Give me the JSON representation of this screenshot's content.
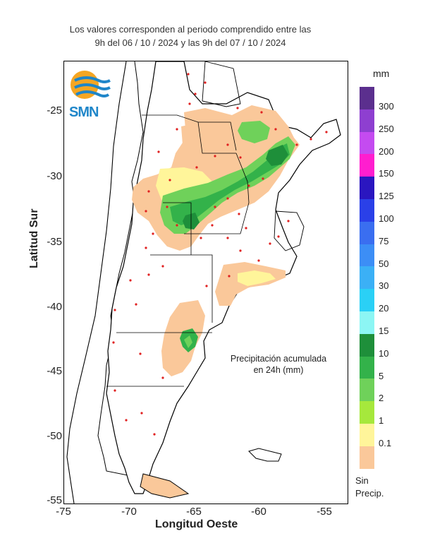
{
  "title": {
    "line1": "Los valores corresponden al periodo comprendido entre las",
    "line2": "9h del 06 / 10 / 2024  y las 9h del 07 / 10 / 2024"
  },
  "logo": {
    "text": "SMN",
    "icon": "smn-sun-waves-logo"
  },
  "axes": {
    "xlabel": "Longitud Oeste",
    "ylabel": "Latitud Sur",
    "xticks": [
      "-75",
      "-70",
      "-65",
      "-60",
      "-55"
    ],
    "yticks": [
      "-25",
      "-30",
      "-35",
      "-40",
      "-45",
      "-50",
      "-55"
    ]
  },
  "colorbar": {
    "unit": "mm",
    "levels": [
      {
        "label": "300",
        "color": "#5b2f8e"
      },
      {
        "label": "250",
        "color": "#8e3fd0"
      },
      {
        "label": "200",
        "color": "#c44bf0"
      },
      {
        "label": "150",
        "color": "#ff1ecf"
      },
      {
        "label": "125",
        "color": "#2a16c0"
      },
      {
        "label": "100",
        "color": "#2a40e8"
      },
      {
        "label": "75",
        "color": "#3a6ef0"
      },
      {
        "label": "50",
        "color": "#3c8ef6"
      },
      {
        "label": "30",
        "color": "#3bb0f6"
      },
      {
        "label": "20",
        "color": "#2ad0f6"
      },
      {
        "label": "15",
        "color": "#8cf6f4"
      },
      {
        "label": "10",
        "color": "#1e8f3a"
      },
      {
        "label": "5",
        "color": "#33b24a"
      },
      {
        "label": "2",
        "color": "#6fd15a"
      },
      {
        "label": "1",
        "color": "#a6e83c"
      },
      {
        "label": "0.1",
        "color": "#fff59a"
      },
      {
        "label": "",
        "color": "#fac89a"
      }
    ],
    "no_precip_line1": "Sin",
    "no_precip_line2": "Precip."
  },
  "annotation": {
    "line1": "Precipitación acumulada",
    "line2": "en 24h (mm)"
  }
}
